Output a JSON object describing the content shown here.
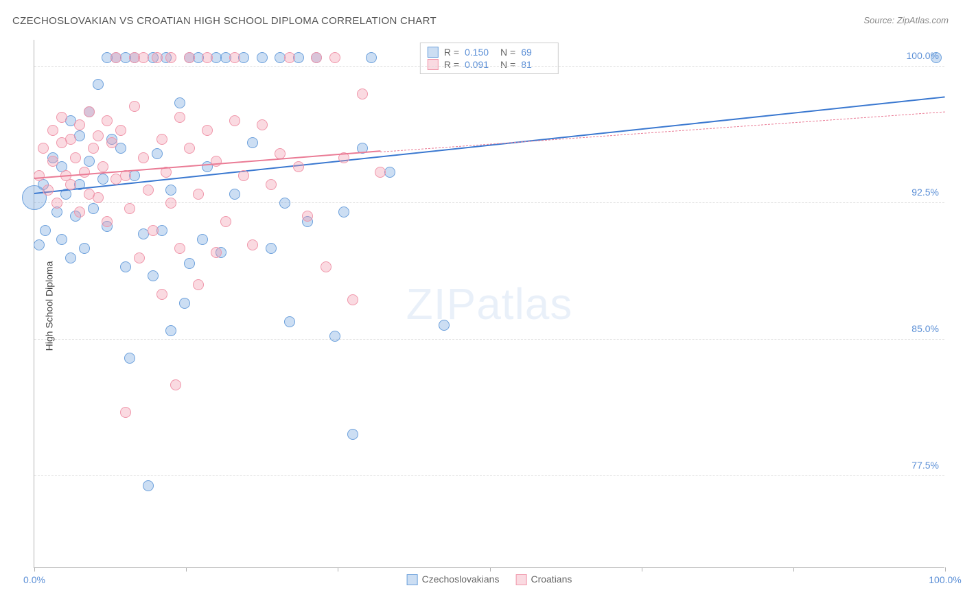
{
  "title": "CZECHOSLOVAKIAN VS CROATIAN HIGH SCHOOL DIPLOMA CORRELATION CHART",
  "source": "Source: ZipAtlas.com",
  "watermark_a": "ZIP",
  "watermark_b": "atlas",
  "ylabel": "High School Diploma",
  "chart": {
    "type": "scatter",
    "xlim": [
      0,
      100
    ],
    "ylim": [
      72.5,
      101.5
    ],
    "y_gridlines": [
      77.5,
      85.0,
      92.5,
      100.0
    ],
    "ytick_labels": [
      "77.5%",
      "85.0%",
      "92.5%",
      "100.0%"
    ],
    "x_ticks": [
      0,
      16.67,
      33.33,
      50,
      66.67,
      83.33,
      100
    ],
    "x_tick_labels_shown": {
      "0": "0.0%",
      "100": "100.0%"
    },
    "background_color": "#ffffff",
    "grid_color": "#dddddd",
    "axis_color": "#b0b0b0",
    "text_color": "#555555",
    "tick_label_color": "#5b8fd6"
  },
  "series": [
    {
      "name": "Czechoslovakians",
      "color_fill": "rgba(108,160,220,0.35)",
      "color_stroke": "#6ca0dc",
      "marker_radius": 8,
      "R": "0.150",
      "N": "69",
      "trend": {
        "x1": 0,
        "y1": 93.0,
        "x2": 100,
        "y2": 98.3,
        "color": "#3a78d0",
        "width": 2.5,
        "dashed": false
      },
      "points": [
        {
          "x": 0,
          "y": 92.8,
          "r": 18
        },
        {
          "x": 0.5,
          "y": 90.2
        },
        {
          "x": 1,
          "y": 93.5
        },
        {
          "x": 1.2,
          "y": 91.0
        },
        {
          "x": 2,
          "y": 95.0
        },
        {
          "x": 2.5,
          "y": 92.0
        },
        {
          "x": 3,
          "y": 90.5
        },
        {
          "x": 3,
          "y": 94.5
        },
        {
          "x": 3.5,
          "y": 93.0
        },
        {
          "x": 4,
          "y": 97.0
        },
        {
          "x": 4,
          "y": 89.5
        },
        {
          "x": 4.5,
          "y": 91.8
        },
        {
          "x": 5,
          "y": 96.2
        },
        {
          "x": 5,
          "y": 93.5
        },
        {
          "x": 5.5,
          "y": 90.0
        },
        {
          "x": 6,
          "y": 94.8
        },
        {
          "x": 6,
          "y": 97.5
        },
        {
          "x": 6.5,
          "y": 92.2
        },
        {
          "x": 7,
          "y": 99.0
        },
        {
          "x": 7.5,
          "y": 93.8
        },
        {
          "x": 8,
          "y": 100.5
        },
        {
          "x": 8,
          "y": 91.2
        },
        {
          "x": 8.5,
          "y": 96.0
        },
        {
          "x": 9,
          "y": 100.5
        },
        {
          "x": 9.5,
          "y": 95.5
        },
        {
          "x": 10,
          "y": 100.5
        },
        {
          "x": 10,
          "y": 89.0
        },
        {
          "x": 10.5,
          "y": 84.0
        },
        {
          "x": 11,
          "y": 94.0
        },
        {
          "x": 11,
          "y": 100.5
        },
        {
          "x": 12,
          "y": 90.8
        },
        {
          "x": 12.5,
          "y": 77.0
        },
        {
          "x": 13,
          "y": 100.5
        },
        {
          "x": 13,
          "y": 88.5
        },
        {
          "x": 13.5,
          "y": 95.2
        },
        {
          "x": 14,
          "y": 91.0
        },
        {
          "x": 14.5,
          "y": 100.5
        },
        {
          "x": 15,
          "y": 85.5
        },
        {
          "x": 15,
          "y": 93.2
        },
        {
          "x": 16,
          "y": 98.0
        },
        {
          "x": 16.5,
          "y": 87.0
        },
        {
          "x": 17,
          "y": 100.5
        },
        {
          "x": 17,
          "y": 89.2
        },
        {
          "x": 18,
          "y": 100.5
        },
        {
          "x": 18.5,
          "y": 90.5
        },
        {
          "x": 19,
          "y": 94.5
        },
        {
          "x": 20,
          "y": 100.5
        },
        {
          "x": 20.5,
          "y": 89.8
        },
        {
          "x": 21,
          "y": 100.5
        },
        {
          "x": 22,
          "y": 93.0
        },
        {
          "x": 23,
          "y": 100.5
        },
        {
          "x": 24,
          "y": 95.8
        },
        {
          "x": 25,
          "y": 100.5
        },
        {
          "x": 26,
          "y": 90.0
        },
        {
          "x": 27,
          "y": 100.5
        },
        {
          "x": 27.5,
          "y": 92.5
        },
        {
          "x": 28,
          "y": 86.0
        },
        {
          "x": 29,
          "y": 100.5
        },
        {
          "x": 30,
          "y": 91.5
        },
        {
          "x": 31,
          "y": 100.5
        },
        {
          "x": 33,
          "y": 85.2
        },
        {
          "x": 34,
          "y": 92.0
        },
        {
          "x": 35,
          "y": 79.8
        },
        {
          "x": 36,
          "y": 95.5
        },
        {
          "x": 37,
          "y": 100.5
        },
        {
          "x": 39,
          "y": 94.2
        },
        {
          "x": 45,
          "y": 85.8
        },
        {
          "x": 99,
          "y": 100.5
        }
      ]
    },
    {
      "name": "Croatians",
      "color_fill": "rgba(240,150,170,0.35)",
      "color_stroke": "#f096aa",
      "marker_radius": 8,
      "R": "0.091",
      "N": "81",
      "trend": {
        "x1": 0,
        "y1": 93.8,
        "x2": 38,
        "y2": 95.3,
        "color": "#ea7b95",
        "width": 2,
        "dashed": false
      },
      "trend_ext": {
        "x1": 38,
        "y1": 95.3,
        "x2": 100,
        "y2": 97.5,
        "color": "#ea7b95",
        "width": 1,
        "dashed": true
      },
      "points": [
        {
          "x": 0.5,
          "y": 94.0
        },
        {
          "x": 1,
          "y": 95.5
        },
        {
          "x": 1.5,
          "y": 93.2
        },
        {
          "x": 2,
          "y": 96.5
        },
        {
          "x": 2,
          "y": 94.8
        },
        {
          "x": 2.5,
          "y": 92.5
        },
        {
          "x": 3,
          "y": 95.8
        },
        {
          "x": 3,
          "y": 97.2
        },
        {
          "x": 3.5,
          "y": 94.0
        },
        {
          "x": 4,
          "y": 96.0
        },
        {
          "x": 4,
          "y": 93.5
        },
        {
          "x": 4.5,
          "y": 95.0
        },
        {
          "x": 5,
          "y": 92.0
        },
        {
          "x": 5,
          "y": 96.8
        },
        {
          "x": 5.5,
          "y": 94.2
        },
        {
          "x": 6,
          "y": 97.5
        },
        {
          "x": 6,
          "y": 93.0
        },
        {
          "x": 6.5,
          "y": 95.5
        },
        {
          "x": 7,
          "y": 92.8
        },
        {
          "x": 7,
          "y": 96.2
        },
        {
          "x": 7.5,
          "y": 94.5
        },
        {
          "x": 8,
          "y": 97.0
        },
        {
          "x": 8,
          "y": 91.5
        },
        {
          "x": 8.5,
          "y": 95.8
        },
        {
          "x": 9,
          "y": 93.8
        },
        {
          "x": 9,
          "y": 100.5
        },
        {
          "x": 9.5,
          "y": 96.5
        },
        {
          "x": 10,
          "y": 94.0
        },
        {
          "x": 10,
          "y": 81.0
        },
        {
          "x": 10.5,
          "y": 92.2
        },
        {
          "x": 11,
          "y": 97.8
        },
        {
          "x": 11,
          "y": 100.5
        },
        {
          "x": 11.5,
          "y": 89.5
        },
        {
          "x": 12,
          "y": 95.0
        },
        {
          "x": 12,
          "y": 100.5
        },
        {
          "x": 12.5,
          "y": 93.2
        },
        {
          "x": 13,
          "y": 91.0
        },
        {
          "x": 13.5,
          "y": 100.5
        },
        {
          "x": 14,
          "y": 96.0
        },
        {
          "x": 14,
          "y": 87.5
        },
        {
          "x": 14.5,
          "y": 94.2
        },
        {
          "x": 15,
          "y": 100.5
        },
        {
          "x": 15,
          "y": 92.5
        },
        {
          "x": 15.5,
          "y": 82.5
        },
        {
          "x": 16,
          "y": 97.2
        },
        {
          "x": 16,
          "y": 90.0
        },
        {
          "x": 17,
          "y": 95.5
        },
        {
          "x": 17,
          "y": 100.5
        },
        {
          "x": 18,
          "y": 93.0
        },
        {
          "x": 18,
          "y": 88.0
        },
        {
          "x": 19,
          "y": 96.5
        },
        {
          "x": 19,
          "y": 100.5
        },
        {
          "x": 20,
          "y": 89.8
        },
        {
          "x": 20,
          "y": 94.8
        },
        {
          "x": 21,
          "y": 91.5
        },
        {
          "x": 22,
          "y": 97.0
        },
        {
          "x": 22,
          "y": 100.5
        },
        {
          "x": 23,
          "y": 94.0
        },
        {
          "x": 24,
          "y": 90.2
        },
        {
          "x": 25,
          "y": 96.8
        },
        {
          "x": 26,
          "y": 93.5
        },
        {
          "x": 27,
          "y": 95.2
        },
        {
          "x": 28,
          "y": 100.5
        },
        {
          "x": 29,
          "y": 94.5
        },
        {
          "x": 30,
          "y": 91.8
        },
        {
          "x": 31,
          "y": 100.5
        },
        {
          "x": 32,
          "y": 89.0
        },
        {
          "x": 33,
          "y": 100.5
        },
        {
          "x": 34,
          "y": 95.0
        },
        {
          "x": 35,
          "y": 87.2
        },
        {
          "x": 36,
          "y": 98.5
        },
        {
          "x": 38,
          "y": 94.2
        }
      ]
    }
  ],
  "legend_bottom": [
    {
      "label": "Czechoslovakians",
      "fill": "rgba(108,160,220,0.35)",
      "stroke": "#6ca0dc"
    },
    {
      "label": "Croatians",
      "fill": "rgba(240,150,170,0.35)",
      "stroke": "#f096aa"
    }
  ],
  "legend_top": {
    "r_label": "R =",
    "n_label": "N ="
  }
}
